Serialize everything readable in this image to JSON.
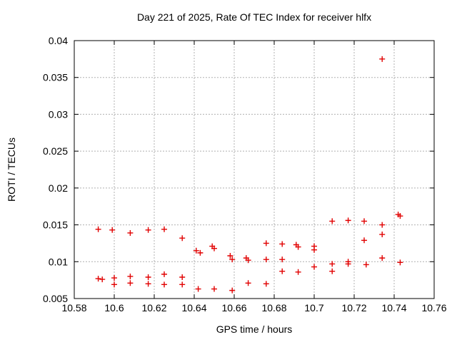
{
  "chart_data": {
    "type": "scatter",
    "title": "Day 221 of 2025, Rate Of TEC Index for receiver hlfx",
    "xlabel": "GPS time / hours",
    "ylabel": "ROTI / TECUs",
    "xlim": [
      10.58,
      10.76
    ],
    "ylim": [
      0.005,
      0.04
    ],
    "xticks": [
      10.58,
      10.6,
      10.62,
      10.64,
      10.66,
      10.68,
      10.7,
      10.72,
      10.74,
      10.76
    ],
    "xtick_labels": [
      "10.58",
      "10.6",
      "10.62",
      "10.64",
      "10.66",
      "10.68",
      "10.7",
      "10.72",
      "10.74",
      "10.76"
    ],
    "yticks": [
      0.005,
      0.01,
      0.015,
      0.02,
      0.025,
      0.03,
      0.035,
      0.04
    ],
    "ytick_labels": [
      "0.005",
      "0.01",
      "0.015",
      "0.02",
      "0.025",
      "0.03",
      "0.035",
      "0.04"
    ],
    "grid": true,
    "legend": "none",
    "marker": {
      "shape": "plus",
      "color": "#e10000",
      "size": 8
    },
    "colors": {
      "axis": "#000000",
      "gridline": "#b0b0b0",
      "background": "#ffffff"
    },
    "series": [
      {
        "name": "ROTI",
        "points": [
          [
            10.592,
            0.0144
          ],
          [
            10.599,
            0.0143
          ],
          [
            10.608,
            0.0139
          ],
          [
            10.617,
            0.0143
          ],
          [
            10.625,
            0.0144
          ],
          [
            10.634,
            0.0132
          ],
          [
            10.641,
            0.0115
          ],
          [
            10.643,
            0.0112
          ],
          [
            10.649,
            0.0121
          ],
          [
            10.65,
            0.0118
          ],
          [
            10.658,
            0.0108
          ],
          [
            10.659,
            0.0103
          ],
          [
            10.666,
            0.0105
          ],
          [
            10.667,
            0.0102
          ],
          [
            10.676,
            0.0125
          ],
          [
            10.676,
            0.0103
          ],
          [
            10.684,
            0.0124
          ],
          [
            10.684,
            0.0103
          ],
          [
            10.691,
            0.0123
          ],
          [
            10.692,
            0.012
          ],
          [
            10.7,
            0.0121
          ],
          [
            10.7,
            0.0116
          ],
          [
            10.709,
            0.0155
          ],
          [
            10.717,
            0.0156
          ],
          [
            10.725,
            0.0155
          ],
          [
            10.725,
            0.0129
          ],
          [
            10.734,
            0.015
          ],
          [
            10.734,
            0.0137
          ],
          [
            10.734,
            0.0105
          ],
          [
            10.742,
            0.0164
          ],
          [
            10.743,
            0.0162
          ],
          [
            10.743,
            0.0099
          ],
          [
            10.734,
            0.0375
          ],
          [
            10.592,
            0.0077
          ],
          [
            10.594,
            0.0076
          ],
          [
            10.6,
            0.0078
          ],
          [
            10.6,
            0.0069
          ],
          [
            10.608,
            0.008
          ],
          [
            10.608,
            0.0071
          ],
          [
            10.617,
            0.0079
          ],
          [
            10.617,
            0.007
          ],
          [
            10.625,
            0.0083
          ],
          [
            10.625,
            0.0069
          ],
          [
            10.634,
            0.0079
          ],
          [
            10.634,
            0.0069
          ],
          [
            10.642,
            0.0063
          ],
          [
            10.65,
            0.0063
          ],
          [
            10.659,
            0.0061
          ],
          [
            10.667,
            0.0071
          ],
          [
            10.676,
            0.007
          ],
          [
            10.684,
            0.0087
          ],
          [
            10.692,
            0.0086
          ],
          [
            10.7,
            0.0093
          ],
          [
            10.709,
            0.0097
          ],
          [
            10.709,
            0.0087
          ],
          [
            10.717,
            0.01
          ],
          [
            10.717,
            0.0097
          ],
          [
            10.726,
            0.0096
          ]
        ]
      }
    ]
  }
}
